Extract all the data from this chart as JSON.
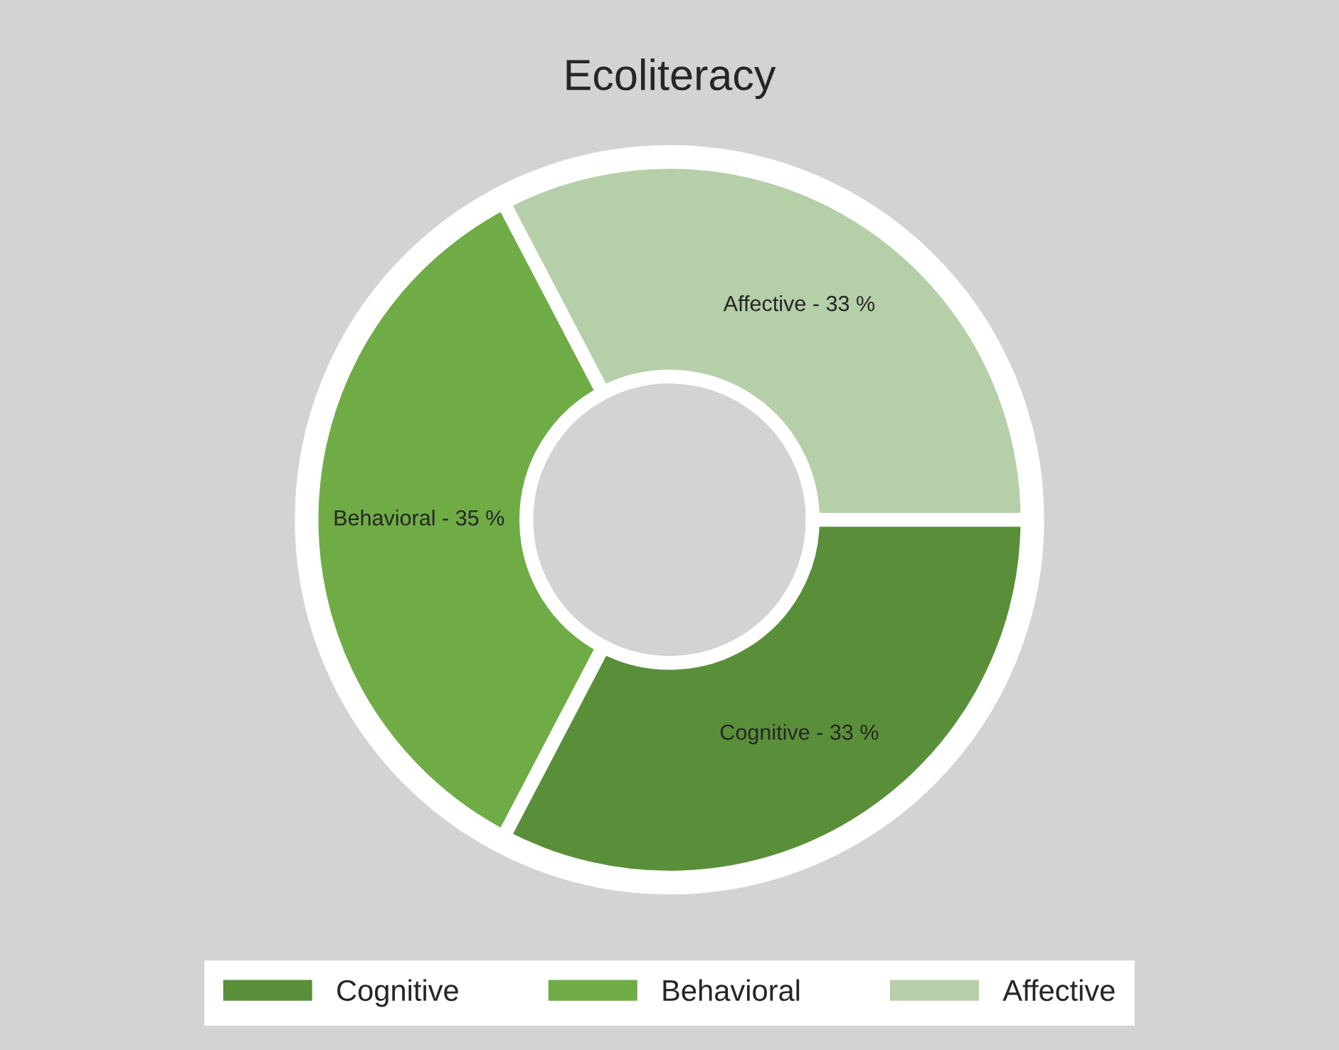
{
  "chart_data": {
    "type": "donut",
    "title": "Ecoliteracy",
    "categories": [
      "Cognitive",
      "Behavioral",
      "Affective"
    ],
    "values": [
      33,
      35,
      33
    ],
    "colors": [
      "#5a8f3a",
      "#6fac46",
      "#b5cfa8"
    ],
    "annotations": [
      "Cognitive - 33 %",
      "Behavioral - 35 %",
      "Affective - 33 %"
    ],
    "legend": "bottom"
  }
}
